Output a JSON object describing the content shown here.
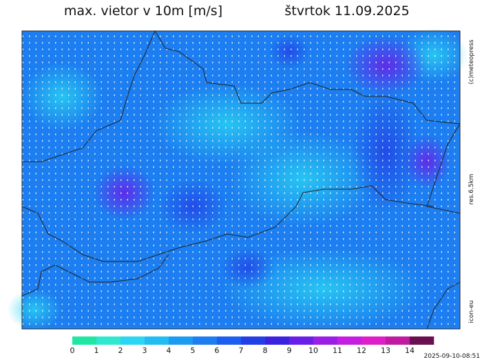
{
  "header": {
    "title": "max. vietor v 10m [m/s]",
    "date": "štvrtok 11.09.2025"
  },
  "side_labels": [
    "(c)meteopress",
    "res.6.5km",
    "icon-eu"
  ],
  "colorbar": {
    "ticks": [
      0,
      1,
      2,
      3,
      4,
      5,
      6,
      7,
      8,
      9,
      10,
      11,
      12,
      13,
      14
    ],
    "colors": [
      "#20e6a4",
      "#2ee8cf",
      "#2ad6f2",
      "#20bcf2",
      "#1c9cf0",
      "#1c7ef0",
      "#1c5ef0",
      "#2240e6",
      "#3a22e0",
      "#6a1ee8",
      "#9a1ee6",
      "#c61ee0",
      "#de1ec6",
      "#c01aa0",
      "#6a1050"
    ]
  },
  "timestamp": "2025-09-10-08:51"
}
